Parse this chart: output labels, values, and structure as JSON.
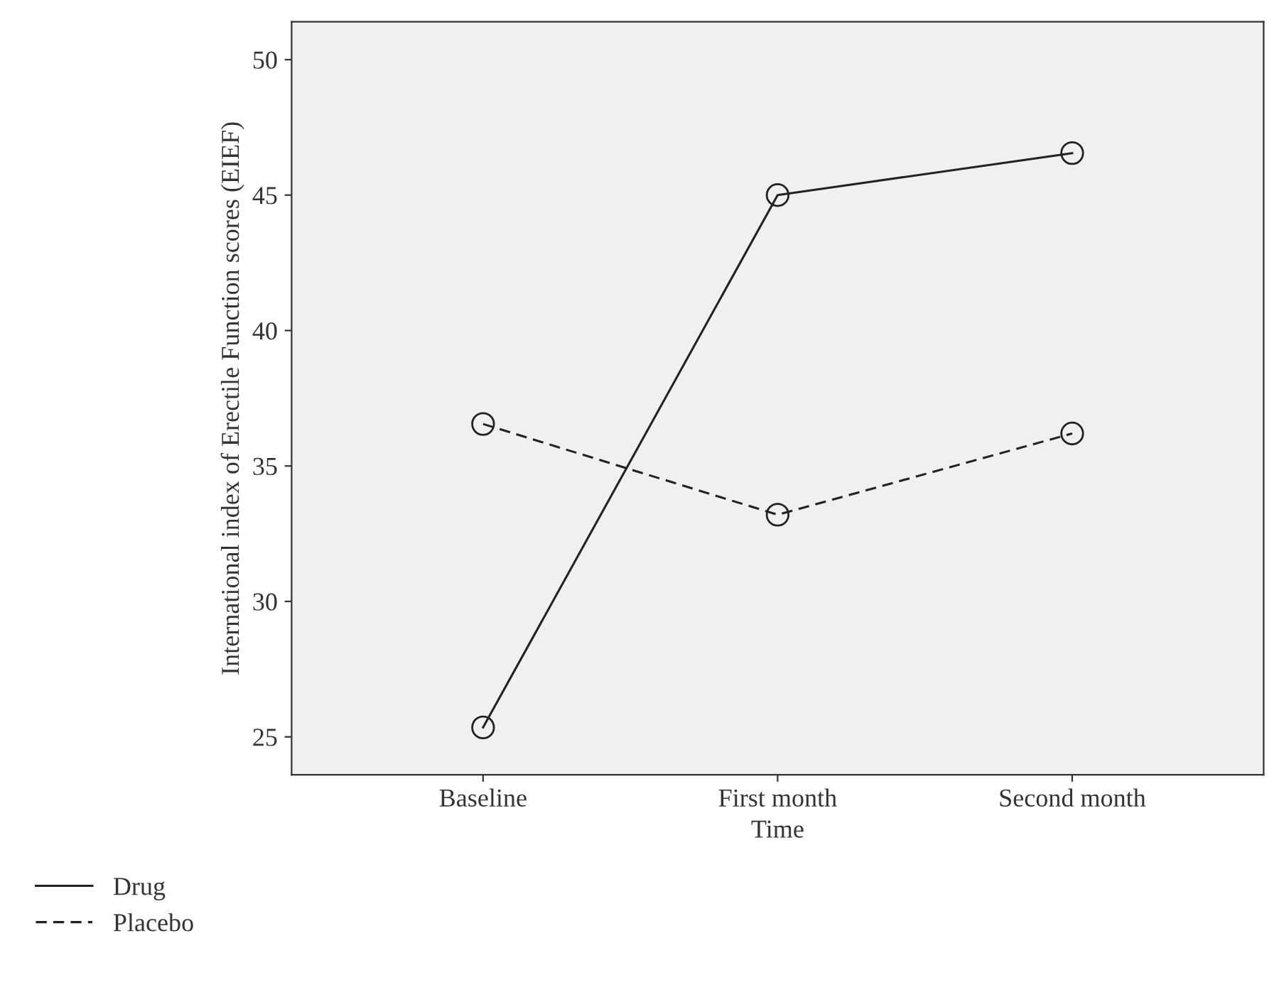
{
  "chart_data": {
    "type": "line",
    "xlabel": "Time",
    "ylabel": "International index of Erectile Function scores (EIEF)",
    "categories": [
      "Baseline",
      "First month",
      "Second month"
    ],
    "series": [
      {
        "name": "Drug",
        "color": "#222222",
        "values": [
          25.35,
          45.0,
          46.55
        ],
        "line_style": "solid"
      },
      {
        "name": "Placebo",
        "color": "#222222",
        "values": [
          36.55,
          33.2,
          36.2
        ],
        "line_style": "dashed"
      }
    ],
    "marker": "circle",
    "ylim": [
      23.6,
      51.4
    ],
    "yticks": [
      25,
      30,
      35,
      40,
      45,
      50
    ],
    "grid": false,
    "legend": "bottom left"
  }
}
